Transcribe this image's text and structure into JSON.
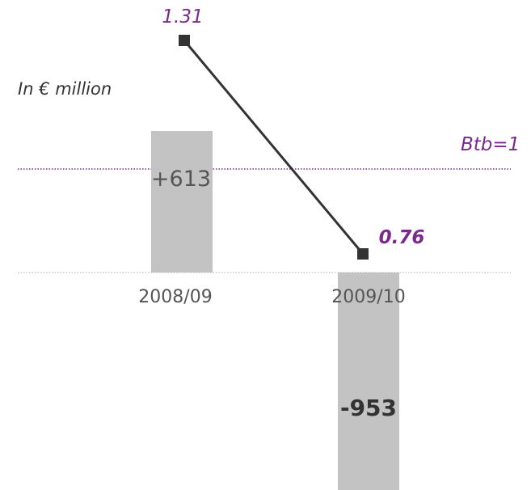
{
  "chart_data": {
    "type": "bar",
    "unit_note": "In € million",
    "categories": [
      "2008/09",
      "2009/10"
    ],
    "series": [
      {
        "kind": "bar",
        "values": [
          613,
          -953
        ],
        "value_labels": [
          "+613",
          "-953"
        ]
      },
      {
        "kind": "line",
        "axis": "secondary",
        "values": [
          1.31,
          0.76
        ],
        "value_labels": [
          "1.31",
          "0.76"
        ]
      }
    ],
    "reference_line": {
      "label": "Btb=1",
      "value": 1
    },
    "ylim": [
      -953,
      613
    ],
    "y2lim": [
      0.76,
      1.31
    ],
    "grid": false,
    "colors": {
      "bar": "#c3c3c3",
      "line": "#333333",
      "accent": "#7a2a8c",
      "baseline": "#bbbbbb"
    }
  }
}
